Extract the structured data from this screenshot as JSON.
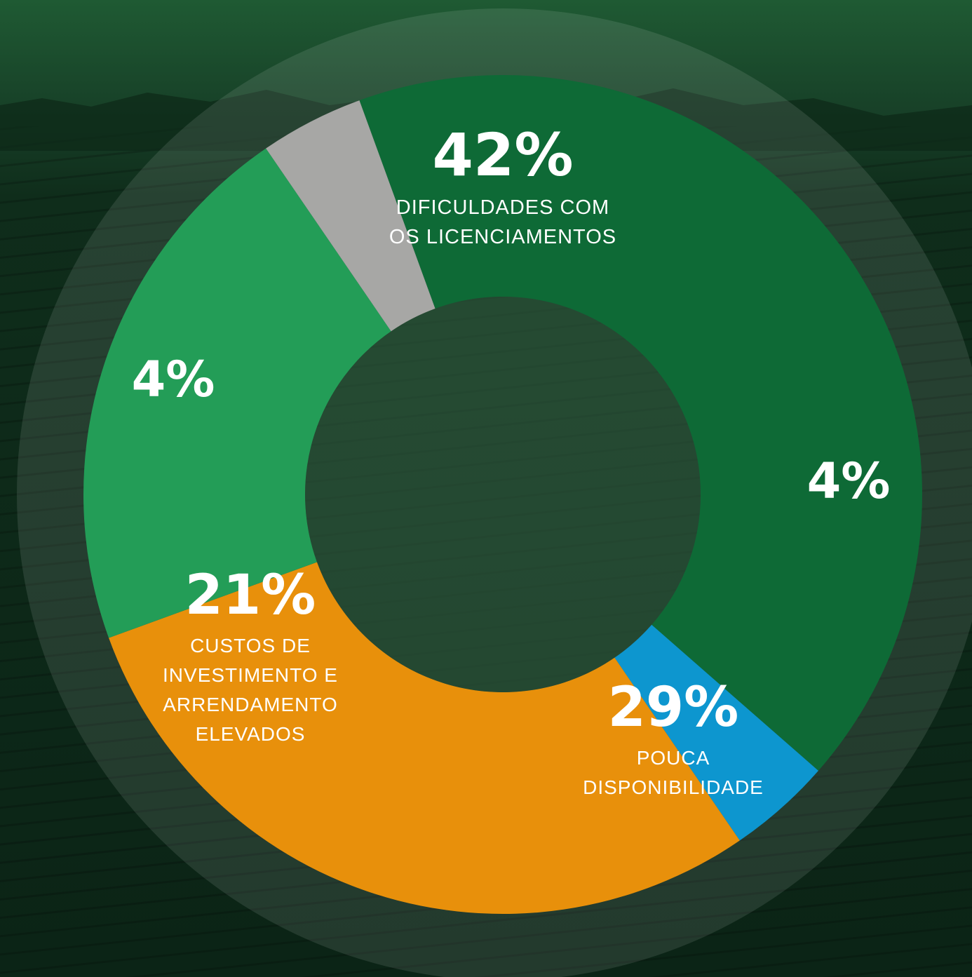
{
  "chart_data": {
    "type": "pie",
    "variant": "donut",
    "slices": [
      {
        "percent_label": "42%",
        "value": 42,
        "label_lines": [
          "DIFICULDADES COM",
          "OS LICENCIAMENTOS"
        ],
        "color": "#0e6a36"
      },
      {
        "percent_label": "4%",
        "value": 4,
        "label_lines": [],
        "color": "#0d96cf"
      },
      {
        "percent_label": "29%",
        "value": 29,
        "label_lines": [
          "POUCA",
          "DISPONIBILIDADE"
        ],
        "color": "#e8900b"
      },
      {
        "percent_label": "21%",
        "value": 21,
        "label_lines": [
          "CUSTOS DE",
          "INVESTIMENTO E",
          "ARRENDAMENTO",
          "ELEVADOS"
        ],
        "color": "#239d57"
      },
      {
        "percent_label": "4%",
        "value": 4,
        "label_lines": [],
        "color": "#a7a7a5"
      }
    ]
  },
  "background": {
    "sky_color": "#1f5a33",
    "field_color": "#0b2416",
    "overlay_color": "#1b4a2b"
  }
}
